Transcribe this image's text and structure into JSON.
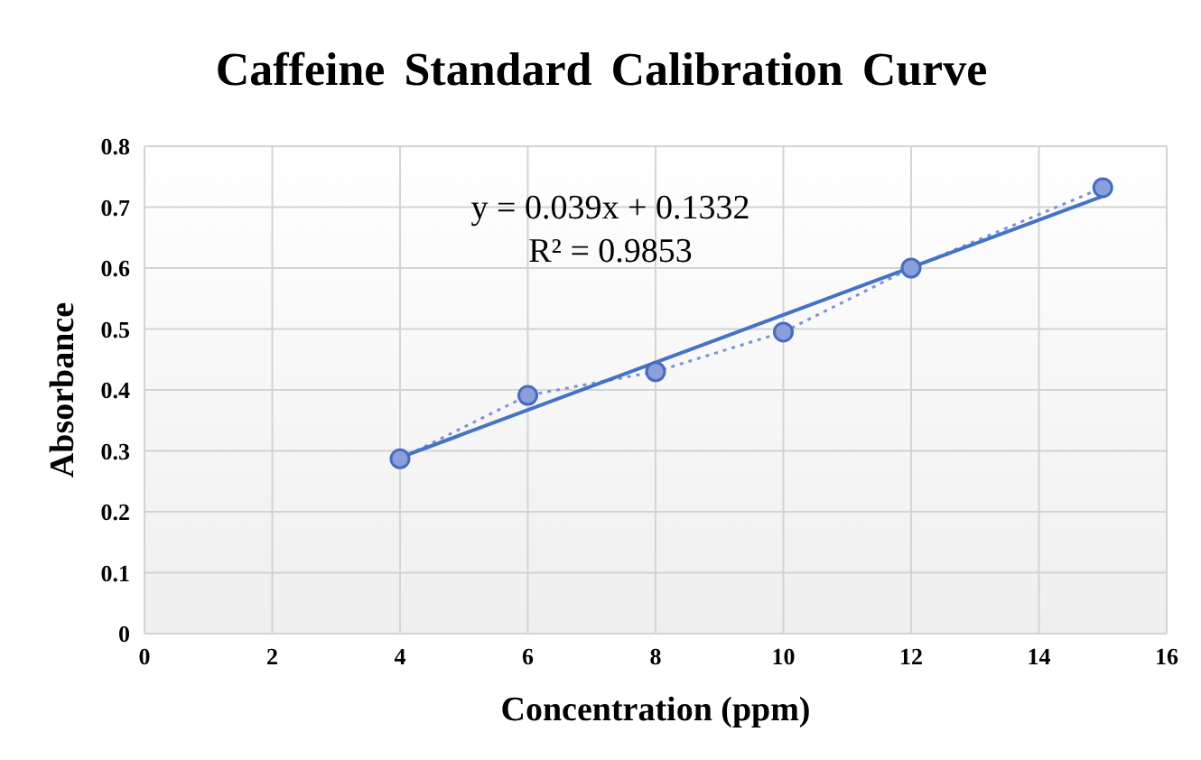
{
  "chart_data": {
    "type": "line",
    "title": "Caffeine Standard Calibration Curve",
    "xlabel": "Concentration (ppm)",
    "ylabel": "Absorbance",
    "annotations": [
      "y = 0.039x + 0.1332",
      "R² = 0.9853"
    ],
    "series": [
      {
        "color": "#7b93d6",
        "x": [
          4,
          6,
          8,
          10,
          12,
          15
        ],
        "values": [
          0.287,
          0.391,
          0.43,
          0.495,
          0.6,
          0.732
        ],
        "marker": "circle",
        "line_style": "dotted"
      },
      {
        "color": "#4472c4",
        "x": [
          4,
          15
        ],
        "values": [
          0.289,
          0.718
        ],
        "marker": "none",
        "line_style": "solid"
      }
    ],
    "xlim": [
      0,
      16
    ],
    "xticks": [
      0,
      2,
      4,
      6,
      8,
      10,
      12,
      14,
      16
    ],
    "ylim": [
      0,
      0.8
    ],
    "yticks": [
      0,
      0.1,
      0.2,
      0.3,
      0.4,
      0.5,
      0.6,
      0.7,
      0.8
    ],
    "grid": true
  }
}
